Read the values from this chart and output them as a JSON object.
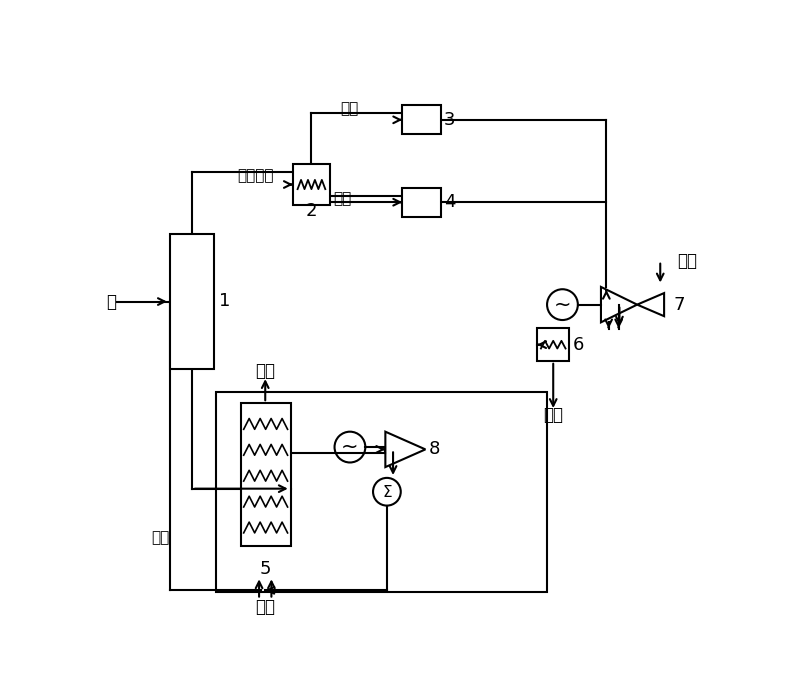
{
  "bg_color": "#ffffff",
  "line_color": "#000000",
  "fig_width": 8.0,
  "fig_height": 6.97,
  "labels": {
    "coal": "煤",
    "pyrolysis_gas": "热解油气",
    "gas": "气体",
    "liquid": "液体",
    "flue_gas_top": "烟气",
    "flue_gas_right": "烟气",
    "semi_coke": "半焦",
    "air_right": "空气",
    "air_bottom": "空气"
  },
  "numbers": {
    "n1": "1",
    "n2": "2",
    "n3": "3",
    "n4": "4",
    "n5": "5",
    "n6": "6",
    "n7": "7",
    "n8": "8"
  }
}
